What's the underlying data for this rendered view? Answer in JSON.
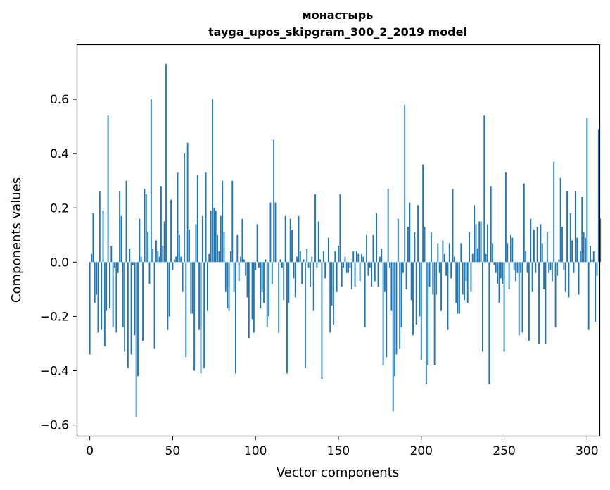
{
  "chart_data": {
    "type": "bar",
    "title": "монастырь",
    "subtitle": "tayga_upos_skipgram_300_2_2019 model",
    "xlabel": "Vector components",
    "ylabel": "Components values",
    "xlim": [
      -7.5,
      307.5
    ],
    "ylim": [
      -0.64,
      0.8
    ],
    "xticks": [
      0,
      50,
      100,
      150,
      200,
      250,
      300
    ],
    "xtick_labels": [
      "0",
      "50",
      "100",
      "150",
      "200",
      "250",
      "300"
    ],
    "yticks": [
      -0.6,
      -0.4,
      -0.2,
      0.0,
      0.2,
      0.4,
      0.6
    ],
    "ytick_labels": [
      "−0.6",
      "−0.4",
      "−0.2",
      "0.0",
      "0.2",
      "0.4",
      "0.6"
    ],
    "grid": false,
    "bar_color": "#1f77b4",
    "x_start": 0,
    "values": [
      -0.34,
      0.03,
      0.18,
      -0.15,
      -0.12,
      -0.26,
      0.26,
      -0.25,
      0.19,
      -0.31,
      -0.18,
      0.54,
      -0.17,
      0.06,
      -0.24,
      -0.02,
      -0.26,
      -0.04,
      0.26,
      0.17,
      -0.24,
      -0.33,
      0.3,
      -0.39,
      0.05,
      -0.34,
      -0.01,
      -0.27,
      -0.57,
      -0.42,
      0.16,
      0.02,
      -0.29,
      0.27,
      0.25,
      0.11,
      -0.08,
      0.6,
      0.05,
      -0.32,
      0.08,
      0.04,
      0.02,
      0.28,
      0.06,
      0.15,
      0.73,
      -0.25,
      -0.2,
      0.23,
      -0.03,
      0.01,
      0.02,
      0.33,
      0.1,
      0.02,
      -0.11,
      0.4,
      -0.35,
      0.44,
      0.12,
      -0.19,
      -0.19,
      -0.4,
      0.14,
      0.32,
      -0.25,
      -0.41,
      0.17,
      -0.39,
      0.33,
      -0.18,
      0.03,
      0.19,
      0.6,
      0.2,
      0.19,
      0.1,
      0.04,
      0.17,
      0.3,
      0.11,
      -0.11,
      -0.17,
      -0.18,
      0.04,
      0.3,
      -0.11,
      -0.41,
      0.1,
      -0.07,
      0.02,
      0.16,
      0.01,
      -0.05,
      -0.13,
      -0.28,
      0.0,
      -0.21,
      -0.26,
      -0.03,
      0.14,
      -0.02,
      -0.17,
      -0.11,
      -0.15,
      0.01,
      -0.24,
      -0.2,
      0.22,
      -0.08,
      0.45,
      0.22,
      0.0,
      -0.26,
      0.01,
      -0.02,
      -0.14,
      0.17,
      -0.41,
      -0.15,
      0.16,
      0.12,
      -0.06,
      -0.13,
      0.02,
      0.17,
      0.04,
      -0.08,
      0.01,
      -0.39,
      0.05,
      -0.02,
      -0.09,
      0.02,
      -0.18,
      0.25,
      -0.02,
      0.15,
      0.01,
      -0.43,
      0.04,
      -0.06,
      0.0,
      0.09,
      -0.26,
      -0.16,
      -0.23,
      0.04,
      -0.11,
      0.06,
      0.25,
      -0.09,
      -0.02,
      0.02,
      -0.04,
      -0.04,
      -0.02,
      -0.1,
      0.04,
      -0.09,
      0.04,
      0.03,
      -0.07,
      0.03,
      0.02,
      -0.24,
      0.1,
      -0.05,
      -0.02,
      -0.09,
      0.1,
      -0.07,
      0.18,
      -0.09,
      0.02,
      0.05,
      -0.38,
      -0.11,
      -0.35,
      0.27,
      -0.02,
      -0.18,
      -0.55,
      -0.42,
      -0.34,
      0.16,
      -0.32,
      -0.24,
      -0.04,
      0.58,
      -0.1,
      0.13,
      0.22,
      -0.14,
      -0.27,
      0.11,
      -0.23,
      0.21,
      -0.2,
      -0.36,
      0.36,
      0.13,
      -0.45,
      -0.38,
      -0.09,
      0.11,
      -0.12,
      -0.38,
      -0.12,
      0.07,
      -0.04,
      -0.18,
      0.08,
      0.03,
      -0.05,
      -0.25,
      0.07,
      -0.06,
      0.27,
      0.02,
      -0.15,
      -0.19,
      -0.19,
      0.07,
      -0.12,
      -0.14,
      -0.07,
      -0.15,
      0.11,
      -0.11,
      0.03,
      0.21,
      0.14,
      0.05,
      0.15,
      0.15,
      -0.33,
      0.54,
      0.03,
      0.14,
      -0.45,
      0.28,
      0.07,
      -0.01,
      -0.04,
      -0.08,
      -0.15,
      -0.06,
      -0.08,
      -0.33,
      0.33,
      0.07,
      -0.1,
      0.1,
      0.09,
      -0.03,
      -0.07,
      -0.04,
      -0.27,
      -0.04,
      -0.26,
      0.29,
      0.04,
      -0.04,
      -0.29,
      0.16,
      -0.11,
      0.12,
      -0.04,
      0.13,
      -0.3,
      0.14,
      0.07,
      -0.1,
      -0.3,
      0.11,
      -0.04,
      -0.03,
      -0.07,
      0.37,
      -0.24,
      -0.05,
      0.01,
      0.31,
      0.13,
      -0.03,
      -0.11,
      0.26,
      -0.13,
      0.18,
      0.08,
      -0.04,
      0.26,
      0.09,
      -0.12,
      0.04,
      0.24,
      0.11,
      0.09,
      0.53,
      -0.25,
      0.06,
      0.01,
      0.04,
      -0.22,
      -0.05,
      0.49,
      0.16
    ]
  }
}
